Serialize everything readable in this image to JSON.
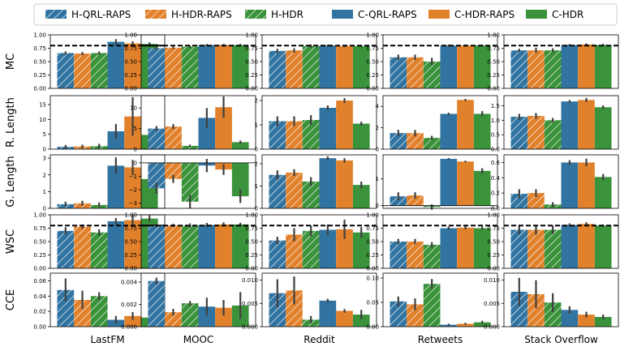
{
  "chart_data": {
    "type": "bar",
    "layout": "grid 5 rows x 5 columns, grouped bars with error bars",
    "legend": {
      "placement": "top",
      "entries": [
        {
          "name": "H-QRL-RAPS",
          "color": "#3274a1",
          "hatched": true
        },
        {
          "name": "H-HDR-RAPS",
          "color": "#e1812c",
          "hatched": true
        },
        {
          "name": "H-HDR",
          "color": "#3a923a",
          "hatched": true
        },
        {
          "name": "C-QRL-RAPS",
          "color": "#3274a1",
          "hatched": false
        },
        {
          "name": "C-HDR-RAPS",
          "color": "#e1812c",
          "hatched": false
        },
        {
          "name": "C-HDR",
          "color": "#3a923a",
          "hatched": false
        }
      ]
    },
    "datasets": [
      "LastFM",
      "MOOC",
      "Reddit",
      "Retweets",
      "Stack Overflow"
    ],
    "metrics": [
      "MC",
      "R. Length",
      "G. Length",
      "WSC",
      "CCE"
    ],
    "reference_line": {
      "metrics": [
        "MC",
        "WSC"
      ],
      "value": 0.8,
      "style": "dashed"
    },
    "panels": [
      [
        {
          "ylim": [
            0,
            1
          ],
          "ticks": [
            "0.00",
            "0.25",
            "0.50",
            "0.75",
            "1.00"
          ],
          "values": [
            0.66,
            0.65,
            0.66,
            0.87,
            0.84,
            0.83
          ],
          "errors": [
            0.03,
            0.03,
            0.03,
            0.05,
            0.04,
            0.03
          ]
        },
        {
          "ylim": [
            0,
            1
          ],
          "ticks": [
            "0.00",
            "0.25",
            "0.50",
            "0.75",
            "1.00"
          ],
          "values": [
            0.75,
            0.76,
            0.78,
            0.81,
            0.81,
            0.81
          ],
          "errors": [
            0.02,
            0.02,
            0.02,
            0.02,
            0.02,
            0.02
          ]
        },
        {
          "ylim": [
            0,
            1
          ],
          "ticks": [
            "0.00",
            "0.25",
            "0.50",
            "0.75",
            "1.00"
          ],
          "values": [
            0.7,
            0.71,
            0.79,
            0.8,
            0.79,
            0.79
          ],
          "errors": [
            0.04,
            0.04,
            0.03,
            0.02,
            0.02,
            0.02
          ]
        },
        {
          "ylim": [
            0,
            1
          ],
          "ticks": [
            "0.00",
            "0.25",
            "0.50",
            "0.75",
            "1.00"
          ],
          "values": [
            0.58,
            0.58,
            0.5,
            0.8,
            0.8,
            0.8
          ],
          "errors": [
            0.05,
            0.05,
            0.07,
            0.02,
            0.02,
            0.02
          ]
        },
        {
          "ylim": [
            0,
            1
          ],
          "ticks": [
            "0.00",
            "0.25",
            "0.50",
            "0.75",
            "1.00"
          ],
          "values": [
            0.71,
            0.71,
            0.71,
            0.81,
            0.82,
            0.81
          ],
          "errors": [
            0.03,
            0.05,
            0.04,
            0.02,
            0.02,
            0.02
          ]
        }
      ],
      [
        {
          "ylim": [
            0,
            18
          ],
          "ticks": [
            "0",
            "5",
            "10",
            "15"
          ],
          "values": [
            0.8,
            0.9,
            1.0,
            6.0,
            11.0,
            4.8
          ],
          "errors": [
            0.6,
            0.6,
            0.8,
            2.5,
            6.5,
            1.8
          ]
        },
        {
          "ylim": [
            0,
            13
          ],
          "ticks": [
            "0",
            "5",
            "10"
          ],
          "values": [
            5.0,
            5.5,
            0.8,
            7.6,
            10.2,
            1.7
          ],
          "errors": [
            0.6,
            0.6,
            0.3,
            2.4,
            2.6,
            0.4
          ]
        },
        {
          "ylim": [
            0,
            2.2
          ],
          "ticks": [
            "0",
            "1",
            "2"
          ],
          "values": [
            1.15,
            1.15,
            1.2,
            1.7,
            2.0,
            1.05
          ],
          "errors": [
            0.2,
            0.2,
            0.2,
            0.1,
            0.1,
            0.08
          ]
        },
        {
          "ylim": [
            0,
            5
          ],
          "ticks": [
            "0",
            "2",
            "4"
          ],
          "values": [
            1.5,
            1.5,
            1.05,
            3.3,
            4.6,
            3.3
          ],
          "errors": [
            0.3,
            0.3,
            0.2,
            0.1,
            0.1,
            0.25
          ]
        },
        {
          "ylim": [
            0,
            1.85
          ],
          "ticks": [
            "0.0",
            "0.5",
            "1.0",
            "1.5"
          ],
          "values": [
            1.12,
            1.15,
            1.0,
            1.65,
            1.7,
            1.45
          ],
          "errors": [
            0.1,
            0.1,
            0.08,
            0.05,
            0.07,
            0.06
          ]
        }
      ],
      [
        {
          "ylim": [
            0,
            3.2
          ],
          "ticks": [
            "0",
            "1",
            "2",
            "3"
          ],
          "values": [
            0.25,
            0.3,
            0.2,
            2.55,
            2.45,
            1.75
          ],
          "errors": [
            0.15,
            0.15,
            0.15,
            0.5,
            0.45,
            0.35
          ]
        },
        {
          "ylim": [
            -3.4,
            0.6
          ],
          "ticks": [
            "−3",
            "−2",
            "−1",
            "0"
          ],
          "values": [
            -1.9,
            -1.2,
            -2.9,
            -0.2,
            -0.5,
            -2.5
          ],
          "errors": [
            0.4,
            0.3,
            0.5,
            0.5,
            0.4,
            0.5
          ]
        },
        {
          "ylim": [
            0,
            2.4
          ],
          "ticks": [
            "0",
            "1",
            "2"
          ],
          "values": [
            1.5,
            1.6,
            1.2,
            2.25,
            2.15,
            1.05
          ],
          "errors": [
            0.2,
            0.15,
            0.2,
            0.08,
            0.1,
            0.15
          ]
        },
        {
          "ylim": [
            -0.1,
            1.9
          ],
          "ticks": [
            "0",
            "1"
          ],
          "values": [
            0.35,
            0.38,
            -0.05,
            1.75,
            1.65,
            1.3
          ],
          "errors": [
            0.15,
            0.12,
            0.1,
            0.03,
            0.03,
            0.1
          ]
        },
        {
          "ylim": [
            0,
            0.7
          ],
          "ticks": [
            "0.0",
            "0.2",
            "0.4",
            "0.6"
          ],
          "values": [
            0.19,
            0.2,
            0.05,
            0.6,
            0.6,
            0.41
          ],
          "errors": [
            0.06,
            0.05,
            0.03,
            0.03,
            0.05,
            0.04
          ]
        }
      ],
      [
        {
          "ylim": [
            0,
            1
          ],
          "ticks": [
            "0.00",
            "0.25",
            "0.50",
            "0.75",
            "1.00"
          ],
          "values": [
            0.7,
            0.78,
            0.67,
            0.88,
            0.9,
            0.93
          ],
          "errors": [
            0.07,
            0.04,
            0.06,
            0.06,
            0.1,
            0.06
          ]
        },
        {
          "ylim": [
            0,
            1
          ],
          "ticks": [
            "0.00",
            "0.25",
            "0.50",
            "0.75",
            "1.00"
          ],
          "values": [
            0.8,
            0.8,
            0.8,
            0.81,
            0.82,
            0.82
          ],
          "errors": [
            0.03,
            0.03,
            0.04,
            0.04,
            0.04,
            0.03
          ]
        },
        {
          "ylim": [
            0,
            1
          ],
          "ticks": [
            "0.00",
            "0.25",
            "0.50",
            "0.75",
            "1.00"
          ],
          "values": [
            0.52,
            0.63,
            0.7,
            0.72,
            0.73,
            0.67
          ],
          "errors": [
            0.07,
            0.12,
            0.1,
            0.1,
            0.18,
            0.1
          ]
        },
        {
          "ylim": [
            0,
            1
          ],
          "ticks": [
            "0.00",
            "0.25",
            "0.50",
            "0.75",
            "1.00"
          ],
          "values": [
            0.5,
            0.5,
            0.44,
            0.75,
            0.76,
            0.75
          ],
          "errors": [
            0.05,
            0.05,
            0.05,
            0.03,
            0.03,
            0.03
          ]
        },
        {
          "ylim": [
            0,
            1
          ],
          "ticks": [
            "0.00",
            "0.25",
            "0.50",
            "0.75",
            "1.00"
          ],
          "values": [
            0.72,
            0.72,
            0.72,
            0.81,
            0.83,
            0.8
          ],
          "errors": [
            0.08,
            0.09,
            0.08,
            0.03,
            0.03,
            0.02
          ]
        }
      ],
      [
        {
          "ylim": [
            0,
            0.07
          ],
          "ticks": [
            "0.00",
            "0.02",
            "0.04",
            "0.06"
          ],
          "values": [
            0.048,
            0.035,
            0.04,
            0.009,
            0.014,
            0.012
          ],
          "errors": [
            0.015,
            0.012,
            0.005,
            0.005,
            0.005,
            0.002
          ]
        },
        {
          "ylim": [
            0,
            0.0048
          ],
          "ticks": [
            "0.000",
            "0.002",
            "0.004"
          ],
          "values": [
            0.0041,
            0.0013,
            0.0021,
            0.0018,
            0.0017,
            0.0019
          ],
          "errors": [
            0.0003,
            0.0003,
            0.0002,
            0.0008,
            0.0007,
            0.0012
          ]
        },
        {
          "ylim": [
            0,
            0.0115
          ],
          "ticks": [
            "0.000",
            "0.005",
            "0.010"
          ],
          "values": [
            0.0072,
            0.0078,
            0.0015,
            0.0056,
            0.0034,
            0.0026
          ],
          "errors": [
            0.003,
            0.003,
            0.0008,
            0.0004,
            0.0004,
            0.001
          ]
        },
        {
          "ylim": [
            0,
            0.11
          ],
          "ticks": [
            "0.00",
            "0.05",
            "0.10"
          ],
          "values": [
            0.052,
            0.046,
            0.088,
            0.004,
            0.006,
            0.009
          ],
          "errors": [
            0.01,
            0.012,
            0.01,
            0.002,
            0.002,
            0.003
          ]
        },
        {
          "ylim": [
            0,
            0.0115
          ],
          "ticks": [
            "0.000",
            "0.005",
            "0.010"
          ],
          "values": [
            0.0075,
            0.007,
            0.0052,
            0.0036,
            0.0026,
            0.0021
          ],
          "errors": [
            0.003,
            0.003,
            0.002,
            0.0008,
            0.0006,
            0.0005
          ]
        }
      ]
    ]
  }
}
